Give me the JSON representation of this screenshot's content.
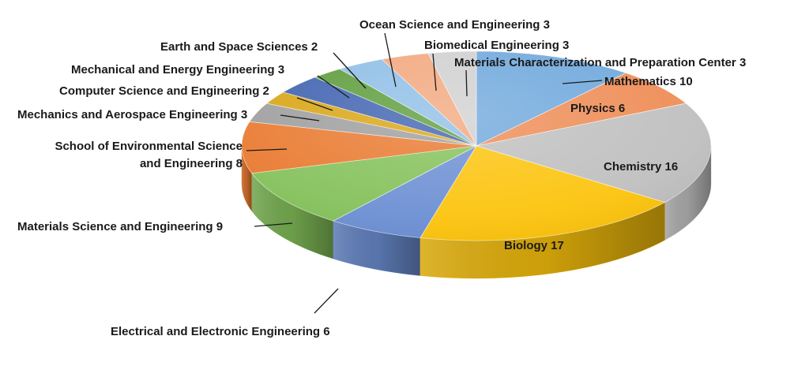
{
  "chart_data": {
    "type": "pie",
    "title": "",
    "style": "3d",
    "series": [
      {
        "label": "Mathematics",
        "value": 10,
        "color": "#6fa8dc",
        "display": "Mathematics 10"
      },
      {
        "label": "Physics",
        "value": 6,
        "color": "#ee8c55",
        "display": "Physics 6"
      },
      {
        "label": "Chemistry",
        "value": 16,
        "color": "#bfbfbf",
        "display": "Chemistry 16"
      },
      {
        "label": "Biology",
        "value": 17,
        "color": "#fcc40d",
        "display": "Biology 17"
      },
      {
        "label": "Electrical and Electronic Engineering",
        "value": 6,
        "color": "#6c8fd3",
        "display": "Electrical and Electronic Engineering 6"
      },
      {
        "label": "Materials Science and Engineering",
        "value": 9,
        "color": "#84c15a",
        "display": "Materials Science and Engineering 9"
      },
      {
        "label": "School of Environmental Science and Engineering",
        "value": 8,
        "color": "#e9792f",
        "display": [
          "School of Environmental Science",
          "and Engineering  8"
        ]
      },
      {
        "label": "Mechanics and Aerospace Engineering",
        "value": 3,
        "color": "#9e9e9e",
        "display": "Mechanics and Aerospace Engineering 3"
      },
      {
        "label": "Computer Science and Engineering",
        "value": 2,
        "color": "#d9a514",
        "display": "Computer Science and Engineering  2"
      },
      {
        "label": "Mechanical and Energy Engineering",
        "value": 3,
        "color": "#3f62b0",
        "display": "Mechanical and Energy Engineering  3"
      },
      {
        "label": "Earth and Space Sciences",
        "value": 2,
        "color": "#5d9c3b",
        "display": "Earth and Space Sciences 2"
      },
      {
        "label": "Ocean Science and Engineering",
        "value": 3,
        "color": "#8ebee6",
        "display": "Ocean Science and Engineering 3"
      },
      {
        "label": "Biomedical Engineering",
        "value": 3,
        "color": "#f2a77d",
        "display": "Biomedical Engineering 3"
      },
      {
        "label": "Materials Characterization and Preparation Center",
        "value": 3,
        "color": "#d0d0d0",
        "display": "Materials Characterization and Preparation Center 3"
      }
    ]
  }
}
